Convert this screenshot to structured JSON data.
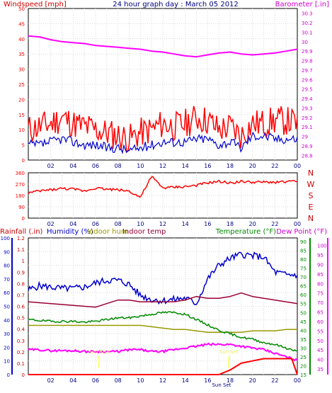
{
  "chart_data": [
    {
      "type": "line",
      "title": "24 hour graph day : March 05 2012",
      "left_axis_label": "Windspeed [mph]",
      "right_axis_label": "Barometer [.in]",
      "x_ticks": [
        "02",
        "04",
        "06",
        "08",
        "10",
        "12",
        "14",
        "16",
        "18",
        "20",
        "22",
        "00"
      ],
      "left_ticks": [
        "0",
        "5",
        "10",
        "15",
        "20",
        "25",
        "30",
        "35",
        "40",
        "45",
        "50"
      ],
      "right_ticks": [
        "28.8",
        "28.9",
        "29",
        "29.1",
        "29.2",
        "29.3",
        "29.4",
        "29.5",
        "29.6",
        "29.7",
        "29.8",
        "29.9",
        "30",
        "30.1",
        "30.2",
        "30.3"
      ],
      "ylim_left": [
        0,
        50
      ],
      "ylim_right": [
        28.75,
        30.35
      ],
      "colors": {
        "wind_gust": "#ff0000",
        "wind_avg": "#0000cc",
        "barometer": "#ff00ff"
      },
      "series": [
        {
          "axis": "right",
          "x": [
            0,
            1,
            2,
            3,
            4,
            5,
            6,
            7,
            8,
            9,
            10,
            11,
            12,
            13,
            14,
            15,
            16,
            17,
            18,
            19,
            20,
            21,
            22,
            23,
            24
          ],
          "values": [
            30.06,
            30.05,
            30.02,
            30.0,
            29.99,
            29.98,
            29.96,
            29.95,
            29.94,
            29.93,
            29.92,
            29.9,
            29.89,
            29.87,
            29.85,
            29.84,
            29.86,
            29.88,
            29.89,
            29.87,
            29.86,
            29.87,
            29.88,
            29.9,
            29.92
          ]
        },
        {
          "axis": "left",
          "x": [
            0,
            1,
            2,
            3,
            4,
            5,
            6,
            7,
            8,
            9,
            10,
            11,
            12,
            13,
            14,
            15,
            16,
            17,
            18,
            19,
            20,
            21,
            22,
            23,
            24
          ],
          "values": [
            10,
            11,
            12,
            14,
            12,
            11,
            10,
            9,
            8,
            7,
            9,
            10,
            12,
            11,
            12,
            14,
            13,
            10,
            11,
            8,
            12,
            12,
            13,
            13,
            12
          ]
        },
        {
          "axis": "left",
          "x": [
            0,
            1,
            2,
            3,
            4,
            5,
            6,
            7,
            8,
            9,
            10,
            11,
            12,
            13,
            14,
            15,
            16,
            17,
            18,
            19,
            20,
            21,
            22,
            23,
            24
          ],
          "values": [
            5,
            5,
            6,
            7,
            6,
            5,
            5,
            4,
            4,
            3,
            4,
            5,
            6,
            6,
            6,
            7,
            7,
            5,
            6,
            4,
            8,
            8,
            7,
            7,
            7
          ]
        }
      ]
    },
    {
      "type": "line",
      "right_compass": [
        "N",
        "W",
        "S",
        "E",
        "N"
      ],
      "left_ticks": [
        "0",
        "90",
        "180",
        "270",
        "360"
      ],
      "x_ticks": [
        "02",
        "04",
        "06",
        "08",
        "10",
        "12",
        "14",
        "16",
        "18",
        "20",
        "22",
        "00"
      ],
      "ylim": [
        0,
        360
      ],
      "color": "#ff0000",
      "series": [
        {
          "x": [
            0,
            1,
            2,
            3,
            4,
            5,
            6,
            7,
            8,
            9,
            10,
            11,
            12,
            13,
            14,
            15,
            16,
            17,
            18,
            19,
            20,
            21,
            22,
            23,
            24
          ],
          "values": [
            200,
            215,
            225,
            235,
            230,
            215,
            240,
            230,
            225,
            215,
            165,
            330,
            240,
            245,
            250,
            260,
            280,
            290,
            280,
            290,
            285,
            285,
            285,
            290,
            290
          ]
        }
      ]
    },
    {
      "type": "line",
      "labels": {
        "rainfall": "Rainfall (.in)",
        "humidity": "Humidity (%)",
        "indoor_hum": "Indoor hum",
        "indoor_temp": "Indoor temp",
        "temperature": "Temperature (°F)",
        "dew_point": "Dew Point (°F)",
        "sunrise": "Sun Rise",
        "sunset": "Sun Set",
        "sunset_axis": "Sun Set"
      },
      "x_ticks": [
        "02",
        "04",
        "06",
        "08",
        "10",
        "12",
        "14",
        "16",
        "18",
        "20",
        "22",
        "00"
      ],
      "humidity_ticks": [
        "0",
        "10",
        "20",
        "30",
        "40",
        "50",
        "60",
        "70",
        "80",
        "90",
        "100"
      ],
      "rain_ticks": [
        "0",
        "0.1",
        "0.2",
        "0.3",
        "0.4",
        "0.5",
        "0.6",
        "0.7",
        "0.8",
        "0.9",
        "1",
        "1.1",
        "1.2"
      ],
      "temp_ticks": [
        "15",
        "20",
        "25",
        "30",
        "35",
        "40",
        "45",
        "50",
        "55",
        "60",
        "65",
        "70",
        "75",
        "80",
        "85",
        "90"
      ],
      "dew_ticks": [
        "35",
        "40",
        "45",
        "50",
        "55",
        "60",
        "65",
        "70",
        "75",
        "80",
        "85",
        "90",
        "95",
        "100"
      ],
      "ylim_humidity": [
        0,
        100
      ],
      "ylim_temp": [
        15,
        92
      ],
      "sunrise_hour": 6.3,
      "sunset_hour": 17.9,
      "colors": {
        "rainfall": "#ff0000",
        "humidity": "#0000cc",
        "indoor_hum": "#999900",
        "indoor_temp": "#990033",
        "temperature": "#008800",
        "dew_point": "#ff00ff",
        "sun_marker": "#ffff66"
      },
      "series": [
        {
          "name": "Humidity (%)",
          "axis": "humidity",
          "x": [
            0,
            1,
            2,
            3,
            4,
            5,
            6,
            7,
            8,
            9,
            10,
            11,
            12,
            13,
            14,
            15,
            16,
            17,
            18,
            19,
            20,
            21,
            22,
            23,
            24
          ],
          "values": [
            62,
            65,
            64,
            63,
            63,
            64,
            67,
            69,
            69,
            66,
            58,
            55,
            54,
            55,
            56,
            52,
            70,
            80,
            85,
            88,
            87,
            86,
            75,
            73,
            73
          ]
        },
        {
          "name": "Indoor hum",
          "axis": "humidity",
          "x": [
            0,
            1,
            2,
            3,
            4,
            5,
            6,
            7,
            8,
            9,
            10,
            11,
            12,
            13,
            14,
            15,
            16,
            17,
            18,
            19,
            20,
            21,
            22,
            23,
            24
          ],
          "values": [
            36,
            36,
            36,
            36,
            36,
            36,
            36,
            36,
            36,
            36,
            36,
            35,
            34,
            33,
            33,
            32,
            31,
            31,
            31,
            31,
            32,
            32,
            32,
            33,
            33
          ]
        },
        {
          "name": "Indoor temp",
          "axis": "temp",
          "x": [
            0,
            1,
            2,
            3,
            4,
            5,
            6,
            7,
            8,
            9,
            10,
            11,
            12,
            13,
            14,
            15,
            16,
            17,
            18,
            19,
            20,
            21,
            22,
            23,
            24
          ],
          "values": [
            56,
            55.5,
            55,
            54.5,
            54,
            53.5,
            53,
            55,
            57,
            57,
            56,
            56,
            56,
            56,
            57,
            59,
            58,
            58,
            59,
            61,
            59,
            58,
            57,
            56,
            55
          ]
        },
        {
          "name": "Temperature (°F)",
          "axis": "temp",
          "x": [
            0,
            1,
            2,
            3,
            4,
            5,
            6,
            7,
            8,
            9,
            10,
            11,
            12,
            13,
            14,
            15,
            16,
            17,
            18,
            19,
            20,
            21,
            22,
            23,
            24
          ],
          "values": [
            46,
            45.5,
            45,
            45,
            45,
            44.5,
            45,
            46,
            47,
            47,
            48,
            49,
            50,
            50,
            49,
            46,
            43,
            40,
            38,
            36,
            35,
            33,
            32,
            30,
            28
          ]
        },
        {
          "name": "Dew Point (°F)",
          "axis": "temp",
          "x": [
            0,
            1,
            2,
            3,
            4,
            5,
            6,
            7,
            8,
            9,
            10,
            11,
            12,
            13,
            14,
            15,
            16,
            17,
            18,
            19,
            20,
            21,
            22,
            23,
            24
          ],
          "values": [
            29,
            29,
            28.5,
            28.5,
            28.5,
            28,
            28,
            28,
            28,
            29,
            29,
            28,
            28,
            29,
            30,
            31,
            32,
            32,
            32,
            31,
            30,
            29,
            27,
            25,
            23
          ]
        },
        {
          "name": "Rainfall (.in)",
          "axis": "rain",
          "x": [
            0,
            1,
            2,
            3,
            4,
            5,
            6,
            7,
            8,
            9,
            10,
            11,
            12,
            13,
            14,
            15,
            16,
            17,
            18,
            19,
            20,
            21,
            22,
            23,
            23.5,
            24
          ],
          "values": [
            0,
            0,
            0,
            0,
            0,
            0,
            0,
            0,
            0,
            0,
            0,
            0,
            0,
            0,
            0,
            0,
            0,
            0,
            0.04,
            0.1,
            0.12,
            0.14,
            0.14,
            0.14,
            0.14,
            0
          ]
        }
      ]
    }
  ]
}
